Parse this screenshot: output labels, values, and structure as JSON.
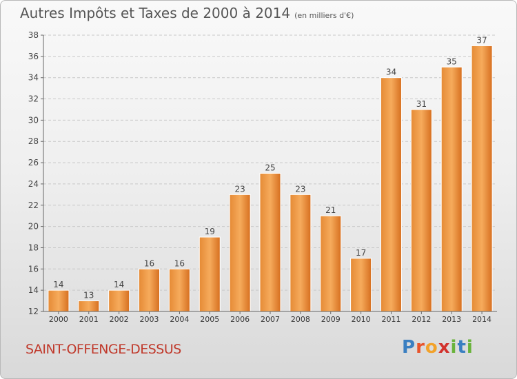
{
  "header": {
    "title": "Autres Impôts et Taxes de 2000 à 2014",
    "unit": "(en milliers d'€)"
  },
  "footer": {
    "commune": "SAINT-OFFENGE-DESSUS"
  },
  "logo": {
    "text": "Proxiti",
    "letters": [
      {
        "ch": "P",
        "color": "#3a7fc1"
      },
      {
        "ch": "r",
        "color": "#e8542b"
      },
      {
        "ch": "o",
        "color": "#f2a22a"
      },
      {
        "ch": "x",
        "color": "#d2322d"
      },
      {
        "ch": "i",
        "color": "#69b33b"
      },
      {
        "ch": "t",
        "color": "#3a7fc1"
      },
      {
        "ch": "i",
        "color": "#69b33b"
      }
    ]
  },
  "chart_data": {
    "type": "bar",
    "title": "Autres Impôts et Taxes de 2000 à 2014",
    "subtitle": "(en milliers d'€)",
    "xlabel": "",
    "ylabel": "",
    "categories": [
      "2000",
      "2001",
      "2002",
      "2003",
      "2004",
      "2005",
      "2006",
      "2007",
      "2008",
      "2009",
      "2010",
      "2011",
      "2012",
      "2013",
      "2014"
    ],
    "values": [
      14,
      13,
      14,
      16,
      16,
      19,
      23,
      25,
      23,
      21,
      17,
      34,
      31,
      35,
      37
    ],
    "ylim": [
      12,
      38
    ],
    "yticks": [
      12,
      14,
      16,
      18,
      20,
      22,
      24,
      26,
      28,
      30,
      32,
      34,
      36,
      38
    ],
    "grid": true,
    "bar_color": "#f0a050"
  }
}
